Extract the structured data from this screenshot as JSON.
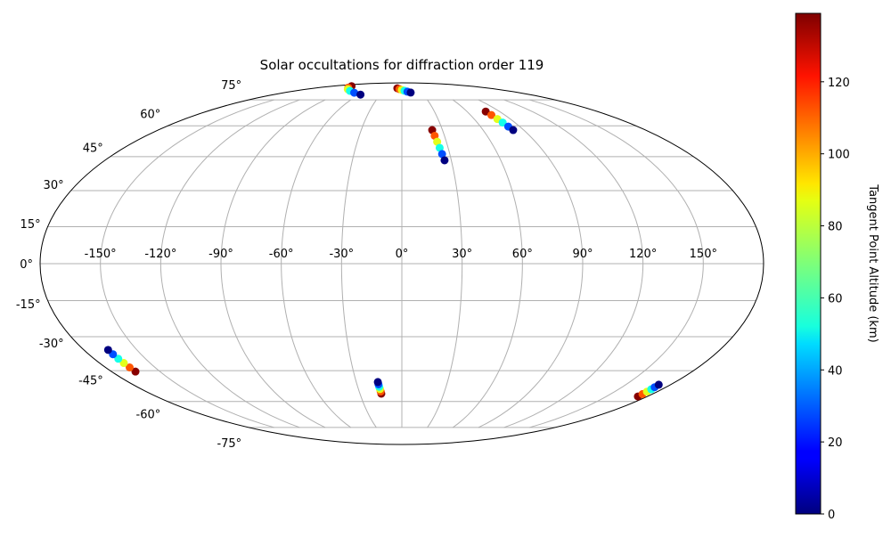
{
  "chart_data": {
    "type": "scatter",
    "projection": "mollweide",
    "title": "Solar occultations for diffraction order 119",
    "colorbar_label": "Tangent Point Altitude (km)",
    "colormap": "jet",
    "clim": [
      0,
      139
    ],
    "cticks": [
      0,
      20,
      40,
      60,
      80,
      100,
      120
    ],
    "grid": true,
    "xticks": [
      {
        "value": -150,
        "label": "-150°"
      },
      {
        "value": -120,
        "label": "-120°"
      },
      {
        "value": -90,
        "label": "-90°"
      },
      {
        "value": -60,
        "label": "-60°"
      },
      {
        "value": -30,
        "label": "-30°"
      },
      {
        "value": 0,
        "label": "0°"
      },
      {
        "value": 30,
        "label": "30°"
      },
      {
        "value": 60,
        "label": "60°"
      },
      {
        "value": 90,
        "label": "90°"
      },
      {
        "value": 120,
        "label": "120°"
      },
      {
        "value": 150,
        "label": "150°"
      }
    ],
    "yticks": [
      {
        "value": -75,
        "label": "-75°"
      },
      {
        "value": -60,
        "label": "-60°"
      },
      {
        "value": -45,
        "label": "-45°"
      },
      {
        "value": -30,
        "label": "-30°"
      },
      {
        "value": -15,
        "label": "-15°"
      },
      {
        "value": 0,
        "label": "0°"
      },
      {
        "value": 15,
        "label": "15°"
      },
      {
        "value": 30,
        "label": "30°"
      },
      {
        "value": 45,
        "label": "45°"
      },
      {
        "value": 60,
        "label": "60°"
      },
      {
        "value": 75,
        "label": "75°"
      }
    ],
    "lon": [
      -131.6,
      -116.9,
      -102.2,
      -87.4,
      -72.7,
      -58.0,
      -9.2,
      -4.6,
      -0.1,
      4.5,
      9.0,
      13.6,
      22.4,
      23.1,
      23.8,
      24.5,
      25.2,
      25.9,
      77.2,
      78.2,
      79.2,
      80.2,
      81.2,
      82.2,
      -165.2,
      -165.4,
      -165.6,
      -165.9,
      -166.1,
      -166.3,
      -14.7,
      -14.9,
      -15.1,
      -15.4,
      -15.6,
      -15.8,
      173.1,
      172.9,
      172.7,
      172.5,
      172.3,
      172.1
    ],
    "lat": [
      85.6,
      84.2,
      82.8,
      81.4,
      80.0,
      78.6,
      83.6,
      82.9,
      82.2,
      81.5,
      80.8,
      80.1,
      57.8,
      54.9,
      52.0,
      49.1,
      46.2,
      43.3,
      67.8,
      65.8,
      63.6,
      61.7,
      59.6,
      57.8,
      -45.4,
      -43.5,
      -41.5,
      -39.6,
      -37.6,
      -35.7,
      -56.0,
      -54.9,
      -53.7,
      -52.6,
      -51.4,
      -50.3,
      -57.4,
      -56.2,
      -55.0,
      -53.8,
      -52.8,
      -51.6
    ],
    "altitude": [
      138,
      110,
      83,
      55,
      28,
      0,
      138,
      110,
      83,
      55,
      28,
      0,
      138,
      110,
      83,
      55,
      28,
      0,
      138,
      110,
      83,
      55,
      28,
      0,
      138,
      110,
      83,
      55,
      28,
      0,
      138,
      110,
      83,
      55,
      28,
      0,
      138,
      110,
      83,
      55,
      28,
      0
    ]
  }
}
